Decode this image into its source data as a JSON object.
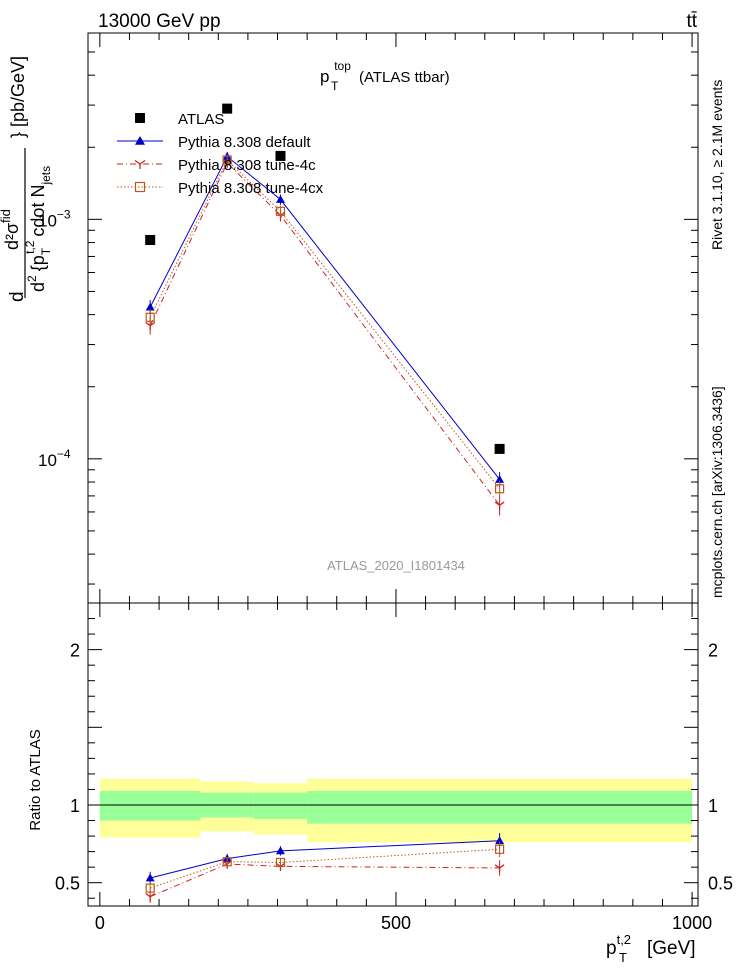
{
  "header": {
    "left": "13000 GeV pp",
    "right": "tt̄"
  },
  "side_labels": {
    "rivet": "Rivet 3.1.10, ≥ 2.1M events",
    "mcplots": "mcplots.cern.ch [arXiv:1306.3436]"
  },
  "watermark": "ATLAS_2020_I1801434",
  "colors": {
    "atlas": "#000000",
    "default": "#0000cc",
    "tune4c": "#cc2222",
    "tune4cx": "#b85a1e",
    "band_inner": "#99ff99",
    "band_outer": "#ffff99"
  },
  "chart_data": [
    {
      "type": "scatter",
      "title": "p_T^top (ATLAS ttbar)",
      "title_parts": {
        "p": "p",
        "sup": "top",
        "sub": "T",
        "rest": "(ATLAS ttbar)"
      },
      "ylabel": "d²σ^fid / d² {p_T^{t,2} cdot N_jets} [pb/GeV]",
      "ylabel_parts": {
        "upper": "d²σ",
        "upper_sup": "fid",
        "d": "d",
        "lower_d2": "d",
        "lower_p": "{p",
        "lower_sub": "T",
        "lower_sup": "t,2",
        "lower_rest": "cdot N",
        "lower_jets": "jets",
        "units": "} [pb/GeV]"
      },
      "y_scale": "log",
      "ylim": [
        2.5e-05,
        0.006
      ],
      "xlim": [
        -20,
        1010
      ],
      "y_ticks": [
        {
          "v": 0.0001,
          "base": "10",
          "exp": "−4"
        },
        {
          "v": 0.001,
          "base": "10",
          "exp": "−3"
        },
        {
          "v": 0.01,
          "base": "10",
          "exp": "−2"
        }
      ],
      "legend_position": "top-left",
      "series": [
        {
          "key": "atlas",
          "name": "ATLAS",
          "marker": "square",
          "x": [
            85,
            215,
            305,
            675
          ],
          "y": [
            0.00082,
            0.0029,
            0.00184,
            0.00011
          ]
        },
        {
          "key": "default",
          "name": "Pythia 8.308 default",
          "marker": "triangle",
          "line": "solid",
          "x": [
            85,
            215,
            305,
            675
          ],
          "y": [
            0.00043,
            0.00183,
            0.00121,
            8.2e-05
          ],
          "err": [
            3e-05,
            8e-05,
            6e-05,
            6e-06
          ]
        },
        {
          "key": "tune4c",
          "name": "Pythia 8.308 tune-4c",
          "marker": "star",
          "line": "dashdot",
          "x": [
            85,
            215,
            305,
            675
          ],
          "y": [
            0.00036,
            0.00172,
            0.00104,
            6.4e-05
          ],
          "err": [
            3e-05,
            8e-05,
            6e-05,
            6e-06
          ]
        },
        {
          "key": "tune4cx",
          "name": "Pythia 8.308 tune-4cx",
          "marker": "open-square",
          "line": "dotted",
          "x": [
            85,
            215,
            305,
            675
          ],
          "y": [
            0.00039,
            0.00177,
            0.00108,
            7.5e-05
          ],
          "err": [
            3e-05,
            8e-05,
            6e-05,
            6e-06
          ]
        }
      ]
    },
    {
      "type": "scatter",
      "ylabel": "Ratio to ATLAS",
      "xlabel": "p_T^{t,2} [GeV]",
      "xlabel_parts": {
        "p": "p",
        "sub": "T",
        "sup": "t,2",
        "units": "[GeV]"
      },
      "ylim": [
        0.35,
        2.3
      ],
      "xlim": [
        -20,
        1010
      ],
      "y_ticks": [
        {
          "v": 0.5,
          "label": "0.5"
        },
        {
          "v": 1,
          "label": "1"
        },
        {
          "v": 2,
          "label": "2"
        }
      ],
      "x_ticks": [
        {
          "v": 0,
          "label": "0"
        },
        {
          "v": 500,
          "label": "500"
        },
        {
          "v": 1000,
          "label": "1000"
        }
      ],
      "reference_line": 1,
      "bands": [
        {
          "x0": 0,
          "x1": 170,
          "inner": [
            0.9,
            1.09
          ],
          "outer": [
            0.79,
            1.17
          ]
        },
        {
          "x0": 170,
          "x1": 260,
          "inner": [
            0.92,
            1.08
          ],
          "outer": [
            0.83,
            1.15
          ]
        },
        {
          "x0": 260,
          "x1": 350,
          "inner": [
            0.91,
            1.08
          ],
          "outer": [
            0.81,
            1.14
          ]
        },
        {
          "x0": 350,
          "x1": 1000,
          "inner": [
            0.88,
            1.09
          ],
          "outer": [
            0.76,
            1.17
          ]
        }
      ],
      "series": [
        {
          "key": "default",
          "name": "Pythia 8.308 default",
          "marker": "triangle",
          "line": "solid",
          "x": [
            85,
            215,
            305,
            675
          ],
          "y": [
            0.53,
            0.655,
            0.705,
            0.77
          ],
          "err": [
            0.04,
            0.03,
            0.03,
            0.05
          ]
        },
        {
          "key": "tune4c",
          "name": "Pythia 8.308 tune-4c",
          "marker": "star",
          "line": "dashdot",
          "x": [
            85,
            215,
            305,
            675
          ],
          "y": [
            0.41,
            0.62,
            0.605,
            0.595
          ],
          "err": [
            0.04,
            0.03,
            0.03,
            0.05
          ]
        },
        {
          "key": "tune4cx",
          "name": "Pythia 8.308 tune-4cx",
          "marker": "open-square",
          "line": "dotted",
          "x": [
            85,
            215,
            305,
            675
          ],
          "y": [
            0.465,
            0.635,
            0.63,
            0.715
          ],
          "err": [
            0.04,
            0.03,
            0.03,
            0.05
          ]
        }
      ]
    }
  ]
}
